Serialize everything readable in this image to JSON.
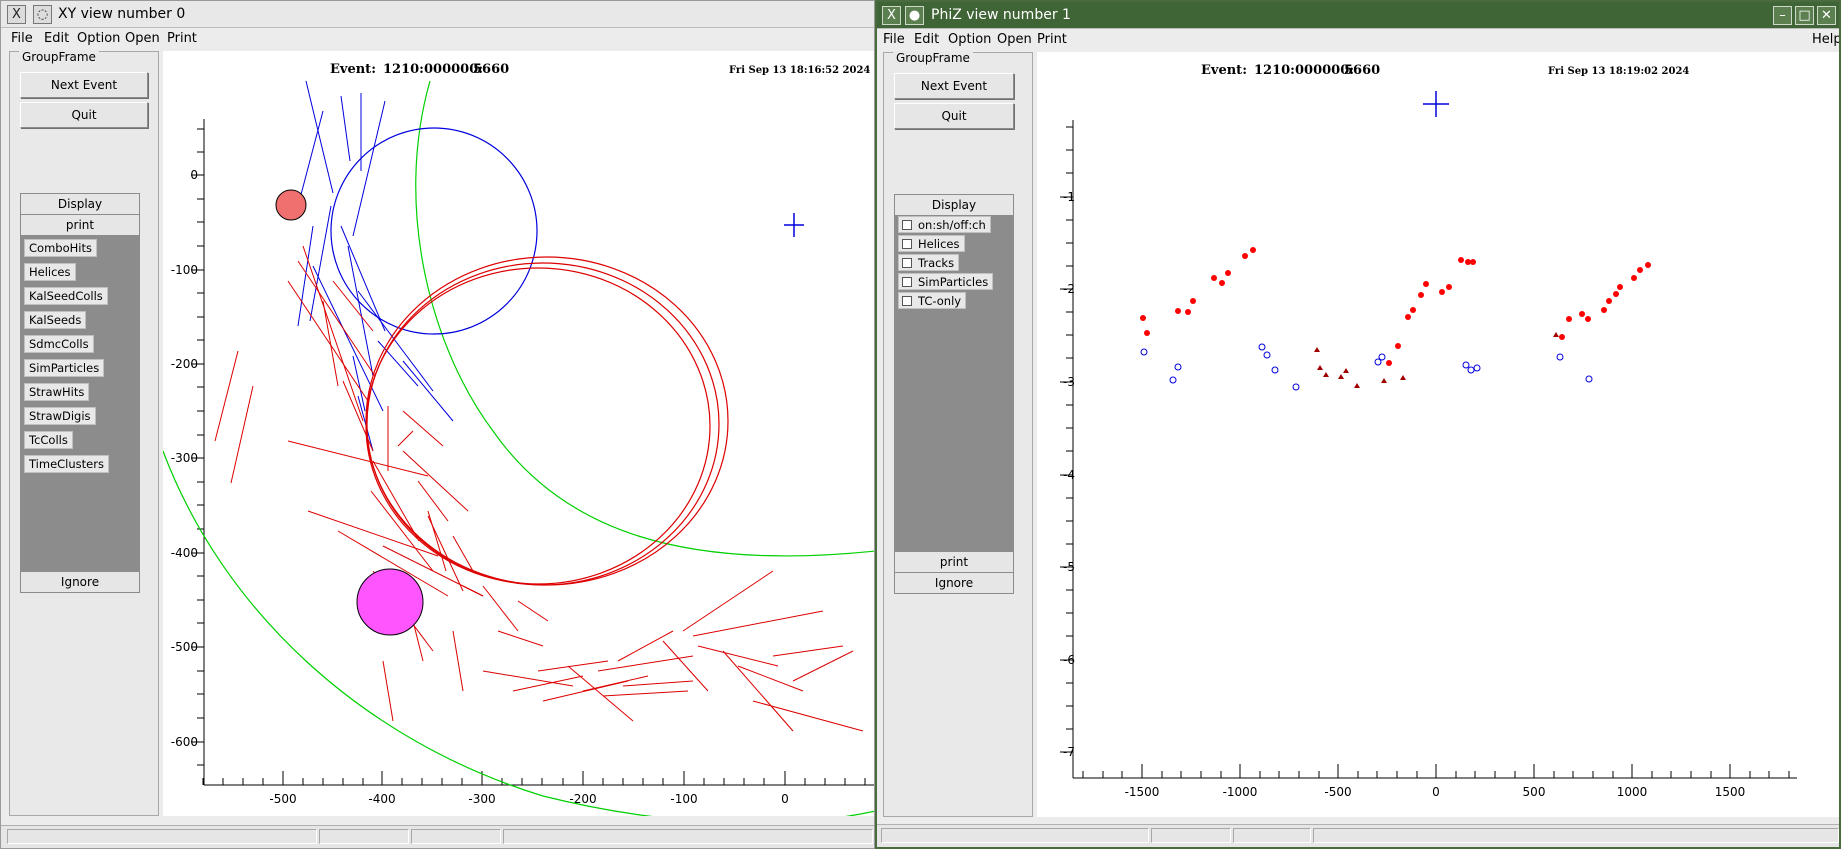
{
  "xy_window": {
    "title": "XY view number 0",
    "menu": [
      "File",
      "Edit",
      "Option",
      "Open",
      "Print"
    ],
    "groupframe_label": "GroupFrame",
    "next_event_label": "Next Event",
    "quit_label": "Quit",
    "display_header": "Display",
    "print_label": "print",
    "items": [
      "ComboHits",
      "Helices",
      "KalSeedColls",
      "KalSeeds",
      "SdmcColls",
      "SimParticles",
      "StrawHits",
      "StrawDigis",
      "TcColls",
      "TimeClusters"
    ],
    "ignore_label": "Ignore",
    "canvas": {
      "event_label": "Event:",
      "event_id": "1210:000000:",
      "event_number": "5660",
      "timestamp": "Fri Sep 13 18:16:52 2024",
      "x_ticks": [
        "-500",
        "-400",
        "-300",
        "-200",
        "-100",
        "0"
      ],
      "y_ticks": [
        "0",
        "-100",
        "-200",
        "-300",
        "-400",
        "-500",
        "-600"
      ]
    }
  },
  "phiz_window": {
    "title": "PhiZ view number 1",
    "menu": [
      "File",
      "Edit",
      "Option",
      "Open",
      "Print"
    ],
    "help_label": "Help",
    "groupframe_label": "GroupFrame",
    "next_event_label": "Next Event",
    "quit_label": "Quit",
    "display_header": "Display",
    "checkboxes": [
      "on:sh/off:ch",
      "Helices",
      "Tracks",
      "SimParticles",
      "TC-only"
    ],
    "print_label": "print",
    "ignore_label": "Ignore",
    "canvas": {
      "event_label": "Event:",
      "event_id": "1210:000000:",
      "event_number": "5660",
      "timestamp": "Fri Sep 13 18:19:02 2024",
      "x_ticks": [
        "-1500",
        "-1000",
        "-500",
        "0",
        "500",
        "1000",
        "1500"
      ],
      "y_ticks": [
        "-1",
        "-2",
        "-3",
        "-4",
        "-5",
        "-6",
        "-7"
      ]
    }
  },
  "colors": {
    "hits": "#ff0000",
    "helix": "#0000ff",
    "sim": "#00d000",
    "calo_small": "#f07070",
    "calo_big": "#ff55ff",
    "dark_red": "#a00000"
  }
}
